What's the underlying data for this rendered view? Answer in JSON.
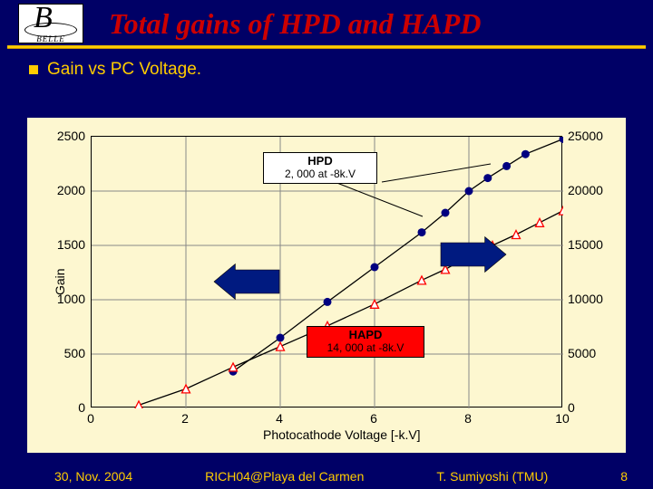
{
  "header": {
    "logo_label": "BELLE",
    "title": "Total gains of HPD and HAPD"
  },
  "bullet": {
    "text": "Gain vs PC Voltage."
  },
  "chart": {
    "type": "scatter-line-dual-axis",
    "background_color": "#fdf7d0",
    "axis_color": "#000000",
    "grid_color": "#888888",
    "xlabel": "Photocathode Voltage [-k.V]",
    "ylabel_left": "Gain",
    "label_fontsize": 14,
    "tick_fontsize": 14,
    "xlim": [
      0,
      10
    ],
    "xtick_step": 2,
    "ylim_left": [
      0,
      2500
    ],
    "ytick_left_step": 500,
    "ylim_right": [
      0,
      25000
    ],
    "ytick_right_step": 5000,
    "series_hpd": {
      "name": "HPD",
      "x": [
        3,
        4,
        5,
        6,
        7,
        7.5,
        8,
        8.4,
        8.8,
        9.2,
        10
      ],
      "y": [
        340,
        650,
        980,
        1300,
        1620,
        1800,
        2000,
        2120,
        2230,
        2340,
        2480
      ],
      "marker": "circle",
      "marker_fill": "#000080",
      "marker_size": 9,
      "line_color": "#000000",
      "line_width": 1.3
    },
    "series_hapd": {
      "name": "HAPD",
      "x": [
        1,
        2,
        3,
        4,
        5,
        6,
        7,
        7.5,
        8,
        8.5,
        9,
        9.5,
        10
      ],
      "y": [
        300,
        1800,
        3800,
        5700,
        7600,
        9600,
        11800,
        12800,
        14000,
        15000,
        16000,
        17100,
        18200
      ],
      "marker": "triangle",
      "marker_stroke": "#ff0000",
      "marker_fill": "#ffffff",
      "marker_size": 9,
      "line_color": "#000000",
      "line_width": 1.3
    },
    "annotations": {
      "hpd_box": {
        "line1": "HPD",
        "line2": "2, 000 at -8k.V",
        "bg": "#ffffff",
        "fg": "#000000",
        "border": "#000000"
      },
      "hapd_box": {
        "line1": "HAPD",
        "line2": "14, 000 at -8k.V",
        "bg": "#ff0000",
        "fg": "#000000",
        "border": "#000000"
      },
      "arrow_fill": "#001a80"
    }
  },
  "footer": {
    "left": "30, Nov. 2004",
    "center": "RICH04@Playa del Carmen",
    "right": "T. Sumiyoshi (TMU)",
    "page": "8"
  }
}
